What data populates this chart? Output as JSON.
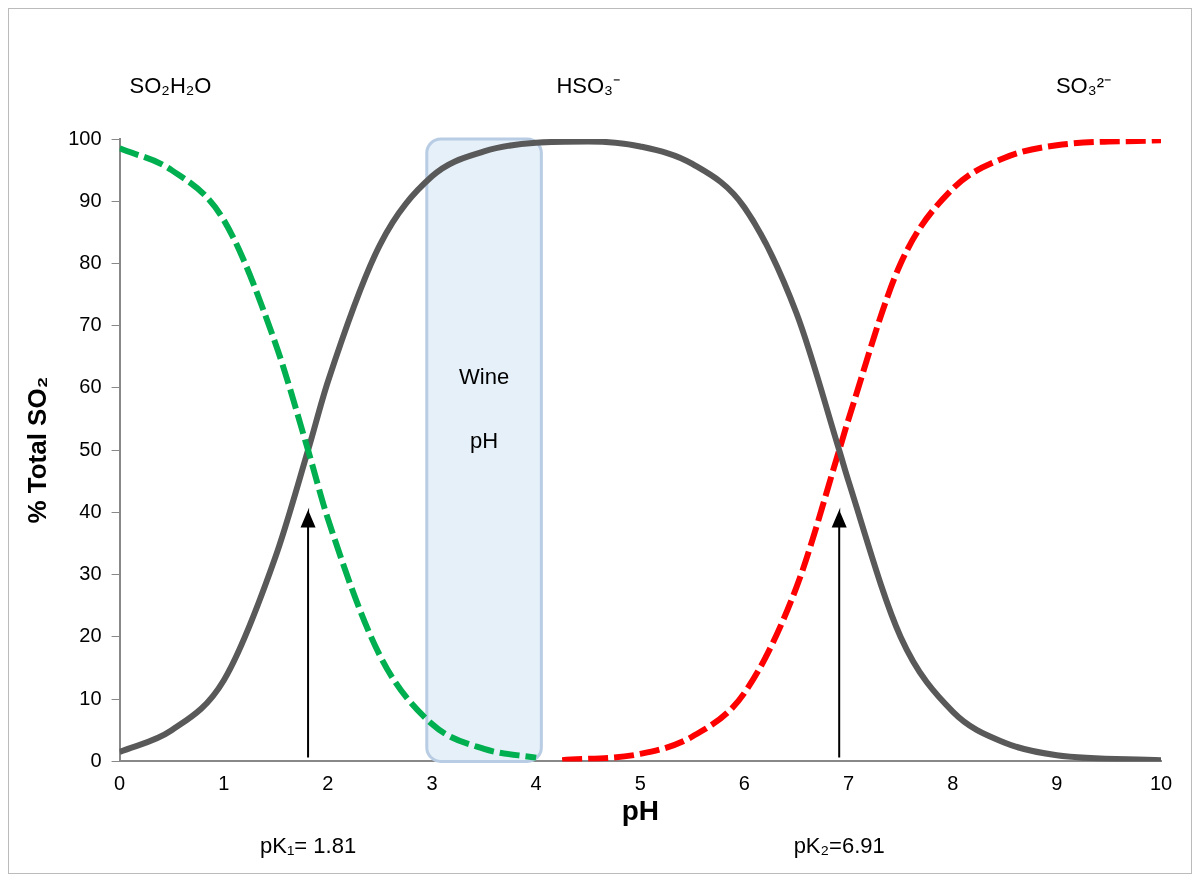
{
  "chart_data": {
    "type": "line",
    "xlabel": "pH",
    "ylabel": "% Total SO₂",
    "xlim": [
      0,
      10
    ],
    "xticks": [
      0,
      1,
      2,
      3,
      4,
      5,
      6,
      7,
      8,
      9,
      10
    ],
    "ylim": [
      0,
      100
    ],
    "yticks": [
      0,
      10,
      20,
      30,
      40,
      50,
      60,
      70,
      80,
      90,
      100
    ],
    "grid": false,
    "legend": false,
    "marker": "none",
    "series": [
      {
        "name": "SO₂H₂O",
        "color": "#00b050",
        "line_style": "dashed",
        "x": [
          0,
          0.5,
          1,
          1.5,
          1.81,
          2,
          2.5,
          3,
          3.5,
          4
        ],
        "values": [
          98.5,
          95,
          87,
          67,
          50,
          39,
          17,
          6,
          2,
          0.6
        ]
      },
      {
        "name": "HSO₃⁻",
        "color": "#595959",
        "line_style": "solid",
        "x": [
          0,
          0.5,
          1,
          1.5,
          1.81,
          2,
          2.5,
          3,
          3.5,
          4,
          4.5,
          5,
          5.5,
          6,
          6.5,
          6.91,
          7,
          7.5,
          8,
          8.5,
          9,
          10
        ],
        "values": [
          1.5,
          5,
          13,
          33,
          50,
          61,
          83,
          94,
          98,
          99.4,
          99.6,
          98.8,
          96,
          89,
          72,
          50,
          45,
          20,
          8,
          3,
          1,
          0.2
        ]
      },
      {
        "name": "SO₃²⁻",
        "color": "#ff0000",
        "line_style": "dashed",
        "x": [
          4.25,
          5,
          5.5,
          6,
          6.5,
          6.91,
          7,
          7.5,
          8,
          8.5,
          9,
          10
        ],
        "values": [
          0.2,
          1.2,
          4,
          11,
          28,
          50,
          55,
          80,
          92,
          97,
          99,
          99.8
        ]
      }
    ],
    "bands": [
      {
        "axis": "x",
        "from": 2.95,
        "to": 4.05,
        "label": "Wine pH",
        "color": "#dbeaf7"
      }
    ],
    "ref_lines": [
      {
        "axis": "x",
        "value": 1.81,
        "color": "#000000"
      },
      {
        "axis": "x",
        "value": 6.91,
        "color": "#000000"
      }
    ],
    "annotations": [
      "pK₁= 1.81",
      "pK₂=6.91"
    ]
  }
}
